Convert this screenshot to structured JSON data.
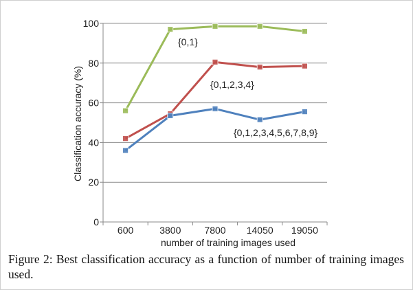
{
  "chart_data": {
    "type": "line",
    "categories": [
      "600",
      "3800",
      "7800",
      "14050",
      "19050"
    ],
    "series": [
      {
        "name": "{0,1}",
        "values": [
          56,
          97,
          98.5,
          98.5,
          96
        ],
        "color": "#9bbb59",
        "marker": "#9bbb59"
      },
      {
        "name": "{0,1,2,3,4}",
        "values": [
          42,
          54.5,
          80.5,
          78,
          78.5
        ],
        "color": "#c0504d",
        "marker": "#c0504d"
      },
      {
        "name": "{0,1,2,3,4,5,6,7,8,9}",
        "values": [
          36,
          53.5,
          57,
          51.5,
          55.5
        ],
        "color": "#4f81bd",
        "marker": "#4f81bd"
      }
    ],
    "ylim": [
      0,
      100
    ],
    "yticks": [
      0,
      20,
      40,
      60,
      80,
      100
    ],
    "ylabel": "Classification accuracy (%)",
    "xlabel": "number of training images used",
    "grid": true,
    "legend": "inline labels"
  },
  "caption": "Figure 2: Best classification accuracy as a function of number of training images used."
}
